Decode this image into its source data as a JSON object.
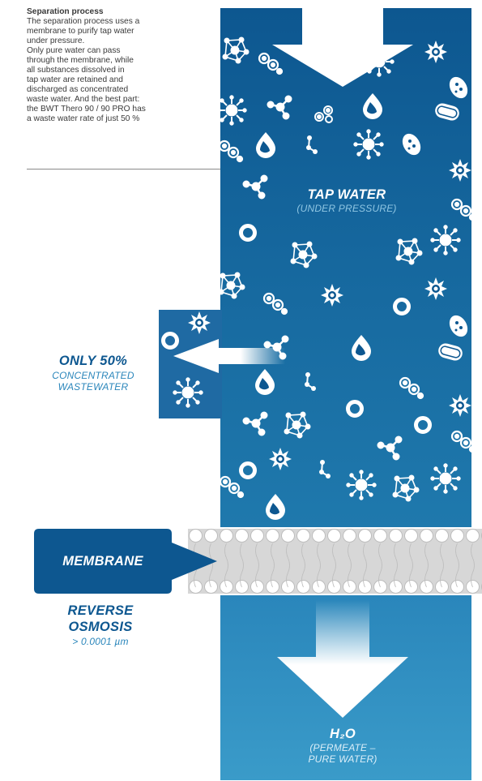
{
  "intro": {
    "heading": "Separation process",
    "lines": [
      "The separation process uses a",
      "membrane to purify tap water",
      "under pressure.",
      "Only pure water can pass",
      "through the membrane, while",
      "all substances dissolved in",
      "tap water are retained and",
      "discharged as concentrated",
      "waste water. And the best part:",
      "the BWT Thero 90 / 90 PRO has",
      "a waste water rate of just 50 %"
    ]
  },
  "labels": {
    "tap_water_title": "TAP WATER",
    "tap_water_sub": "(UNDER PRESSURE)",
    "waste_title": "ONLY 50%",
    "waste_sub_1": "CONCENTRATED",
    "waste_sub_2": "WASTEWATER",
    "membrane": "MEMBRANE",
    "ro_title_1": "REVERSE",
    "ro_title_2": "OSMOSIS",
    "ro_sub": "> 0.0001 µm",
    "h2o_title": "H₂O",
    "h2o_sub_1": "(PERMEATE –",
    "h2o_sub_2": "PURE WATER)"
  },
  "colors": {
    "navy": "#0d5790",
    "mid_blue": "#1f79ad",
    "permeate_blue": "#3a9bc9",
    "light_blue": "#8fc6e3",
    "membrane_gray": "#d7d7d7",
    "text_gray": "#3a3a3a"
  }
}
